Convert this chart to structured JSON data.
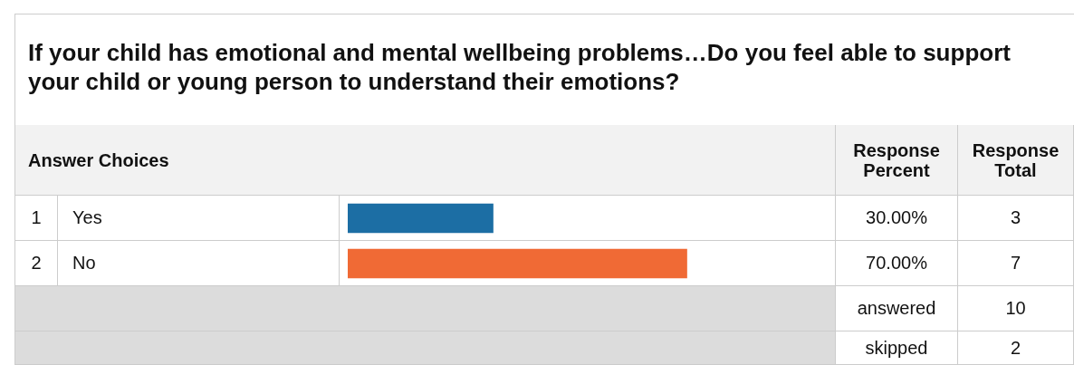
{
  "chart_data": {
    "type": "bar",
    "orientation": "horizontal",
    "title": "If your child has emotional and mental wellbeing problems…Do you feel able to support your child or young person to understand their emotions?",
    "categories": [
      "Yes",
      "No"
    ],
    "values": [
      30,
      70
    ],
    "colors": [
      "#1c6ea4",
      "#f06a35"
    ],
    "value_labels": [
      "30.00%",
      "70.00%"
    ],
    "xlim": [
      0,
      100
    ],
    "legend": false,
    "annotations": [
      "Answer Choices",
      "Response Percent",
      "Response Total",
      "1",
      "3",
      "2",
      "7",
      "answered",
      "10",
      "skipped",
      "2"
    ]
  }
}
